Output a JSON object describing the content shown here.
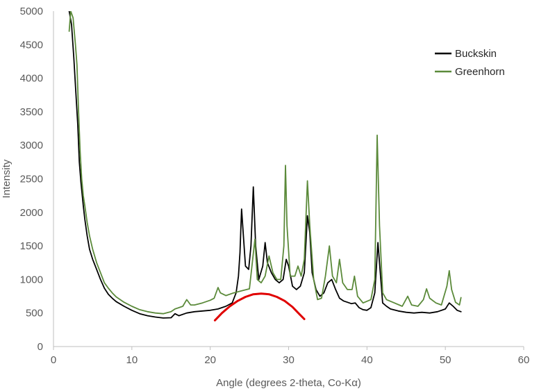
{
  "chart_data": {
    "type": "line",
    "title": "",
    "xlabel": "Angle (degrees 2-theta, Co-Kα)",
    "ylabel": "Intensity",
    "xlim": [
      0,
      60
    ],
    "ylim": [
      0,
      5000
    ],
    "x_ticks": [
      0,
      10,
      20,
      30,
      40,
      50,
      60
    ],
    "y_ticks": [
      0,
      500,
      1000,
      1500,
      2000,
      2500,
      3000,
      3500,
      4000,
      4500,
      5000
    ],
    "grid": false,
    "legend_position": "top-right",
    "series": [
      {
        "name": "Buckskin",
        "color": "#000000",
        "points": [
          [
            2.0,
            5000
          ],
          [
            2.3,
            4800
          ],
          [
            2.6,
            4300
          ],
          [
            2.9,
            3700
          ],
          [
            3.1,
            3300
          ],
          [
            3.3,
            2750
          ],
          [
            3.5,
            2450
          ],
          [
            3.8,
            2100
          ],
          [
            4.0,
            1900
          ],
          [
            4.3,
            1650
          ],
          [
            4.6,
            1450
          ],
          [
            5.0,
            1300
          ],
          [
            5.5,
            1150
          ],
          [
            6.0,
            1000
          ],
          [
            6.5,
            870
          ],
          [
            7.0,
            780
          ],
          [
            7.5,
            720
          ],
          [
            8.0,
            670
          ],
          [
            9.0,
            600
          ],
          [
            10.0,
            540
          ],
          [
            11.0,
            490
          ],
          [
            12.0,
            460
          ],
          [
            13.0,
            440
          ],
          [
            14.0,
            425
          ],
          [
            15.0,
            430
          ],
          [
            15.5,
            490
          ],
          [
            16.0,
            460
          ],
          [
            17.0,
            500
          ],
          [
            18.0,
            520
          ],
          [
            19.0,
            530
          ],
          [
            20.0,
            540
          ],
          [
            21.0,
            560
          ],
          [
            22.0,
            600
          ],
          [
            22.8,
            650
          ],
          [
            23.3,
            800
          ],
          [
            23.6,
            1050
          ],
          [
            23.8,
            1400
          ],
          [
            24.0,
            2050
          ],
          [
            24.2,
            1700
          ],
          [
            24.5,
            1200
          ],
          [
            24.9,
            1150
          ],
          [
            25.2,
            1500
          ],
          [
            25.5,
            2380
          ],
          [
            25.8,
            1500
          ],
          [
            26.2,
            1000
          ],
          [
            26.7,
            1200
          ],
          [
            27.0,
            1550
          ],
          [
            27.3,
            1250
          ],
          [
            27.8,
            1100
          ],
          [
            28.3,
            1000
          ],
          [
            28.8,
            950
          ],
          [
            29.3,
            1000
          ],
          [
            29.7,
            1300
          ],
          [
            30.0,
            1200
          ],
          [
            30.5,
            900
          ],
          [
            31.0,
            850
          ],
          [
            31.5,
            900
          ],
          [
            32.0,
            1100
          ],
          [
            32.4,
            1950
          ],
          [
            32.7,
            1700
          ],
          [
            33.0,
            1100
          ],
          [
            33.5,
            850
          ],
          [
            34.0,
            750
          ],
          [
            34.5,
            800
          ],
          [
            35.0,
            950
          ],
          [
            35.5,
            1000
          ],
          [
            36.0,
            850
          ],
          [
            36.5,
            720
          ],
          [
            37.0,
            680
          ],
          [
            37.5,
            660
          ],
          [
            38.0,
            640
          ],
          [
            38.5,
            650
          ],
          [
            39.0,
            580
          ],
          [
            39.5,
            550
          ],
          [
            40.0,
            540
          ],
          [
            40.5,
            580
          ],
          [
            41.0,
            800
          ],
          [
            41.4,
            1550
          ],
          [
            41.7,
            1100
          ],
          [
            42.0,
            650
          ],
          [
            42.5,
            600
          ],
          [
            43.0,
            560
          ],
          [
            44.0,
            530
          ],
          [
            45.0,
            510
          ],
          [
            46.0,
            500
          ],
          [
            47.0,
            510
          ],
          [
            48.0,
            500
          ],
          [
            49.0,
            520
          ],
          [
            50.0,
            560
          ],
          [
            50.5,
            650
          ],
          [
            51.0,
            600
          ],
          [
            51.5,
            540
          ],
          [
            52.0,
            520
          ]
        ]
      },
      {
        "name": "Greenhorn",
        "color": "#5b8a3a",
        "points": [
          [
            2.0,
            4700
          ],
          [
            2.2,
            5000
          ],
          [
            2.5,
            4900
          ],
          [
            2.8,
            4500
          ],
          [
            3.0,
            4200
          ],
          [
            3.2,
            3500
          ],
          [
            3.4,
            2900
          ],
          [
            3.6,
            2500
          ],
          [
            3.8,
            2250
          ],
          [
            4.0,
            2100
          ],
          [
            4.3,
            1850
          ],
          [
            4.6,
            1650
          ],
          [
            5.0,
            1450
          ],
          [
            5.5,
            1250
          ],
          [
            6.0,
            1100
          ],
          [
            6.5,
            950
          ],
          [
            7.0,
            870
          ],
          [
            7.5,
            800
          ],
          [
            8.0,
            740
          ],
          [
            9.0,
            660
          ],
          [
            10.0,
            600
          ],
          [
            11.0,
            550
          ],
          [
            12.0,
            520
          ],
          [
            13.0,
            500
          ],
          [
            14.0,
            490
          ],
          [
            15.0,
            520
          ],
          [
            15.5,
            560
          ],
          [
            16.0,
            580
          ],
          [
            16.5,
            600
          ],
          [
            17.0,
            700
          ],
          [
            17.5,
            620
          ],
          [
            18.0,
            620
          ],
          [
            19.0,
            650
          ],
          [
            20.0,
            690
          ],
          [
            20.5,
            720
          ],
          [
            21.0,
            880
          ],
          [
            21.3,
            800
          ],
          [
            22.0,
            760
          ],
          [
            23.0,
            800
          ],
          [
            24.0,
            830
          ],
          [
            25.0,
            860
          ],
          [
            25.7,
            1600
          ],
          [
            26.0,
            1000
          ],
          [
            26.5,
            950
          ],
          [
            27.0,
            1050
          ],
          [
            27.5,
            1350
          ],
          [
            28.0,
            1100
          ],
          [
            28.5,
            1000
          ],
          [
            29.0,
            1000
          ],
          [
            29.4,
            1500
          ],
          [
            29.6,
            2700
          ],
          [
            29.8,
            1800
          ],
          [
            30.2,
            1050
          ],
          [
            30.8,
            1050
          ],
          [
            31.2,
            1200
          ],
          [
            31.6,
            1050
          ],
          [
            32.0,
            1300
          ],
          [
            32.4,
            2470
          ],
          [
            32.7,
            1800
          ],
          [
            33.2,
            1000
          ],
          [
            33.7,
            700
          ],
          [
            34.2,
            720
          ],
          [
            34.7,
            1050
          ],
          [
            35.2,
            1500
          ],
          [
            35.6,
            1050
          ],
          [
            36.1,
            950
          ],
          [
            36.5,
            1300
          ],
          [
            36.9,
            950
          ],
          [
            37.5,
            850
          ],
          [
            38.1,
            850
          ],
          [
            38.4,
            1050
          ],
          [
            38.8,
            750
          ],
          [
            39.5,
            650
          ],
          [
            40.5,
            700
          ],
          [
            41.0,
            1000
          ],
          [
            41.3,
            3150
          ],
          [
            41.6,
            1800
          ],
          [
            42.0,
            800
          ],
          [
            42.5,
            700
          ],
          [
            43.5,
            650
          ],
          [
            44.5,
            600
          ],
          [
            45.2,
            750
          ],
          [
            45.7,
            620
          ],
          [
            46.5,
            600
          ],
          [
            47.2,
            700
          ],
          [
            47.6,
            860
          ],
          [
            48.0,
            720
          ],
          [
            48.8,
            650
          ],
          [
            49.5,
            620
          ],
          [
            50.2,
            900
          ],
          [
            50.5,
            1130
          ],
          [
            50.8,
            850
          ],
          [
            51.3,
            660
          ],
          [
            51.8,
            620
          ],
          [
            52.0,
            730
          ]
        ]
      },
      {
        "name": "",
        "color": "#e00000",
        "points": [
          [
            20.6,
            390
          ],
          [
            21.5,
            500
          ],
          [
            22.5,
            600
          ],
          [
            23.5,
            680
          ],
          [
            24.5,
            740
          ],
          [
            25.5,
            780
          ],
          [
            26.5,
            790
          ],
          [
            27.5,
            780
          ],
          [
            28.5,
            740
          ],
          [
            29.5,
            680
          ],
          [
            30.5,
            590
          ],
          [
            31.4,
            480
          ],
          [
            32.0,
            410
          ]
        ]
      }
    ]
  }
}
